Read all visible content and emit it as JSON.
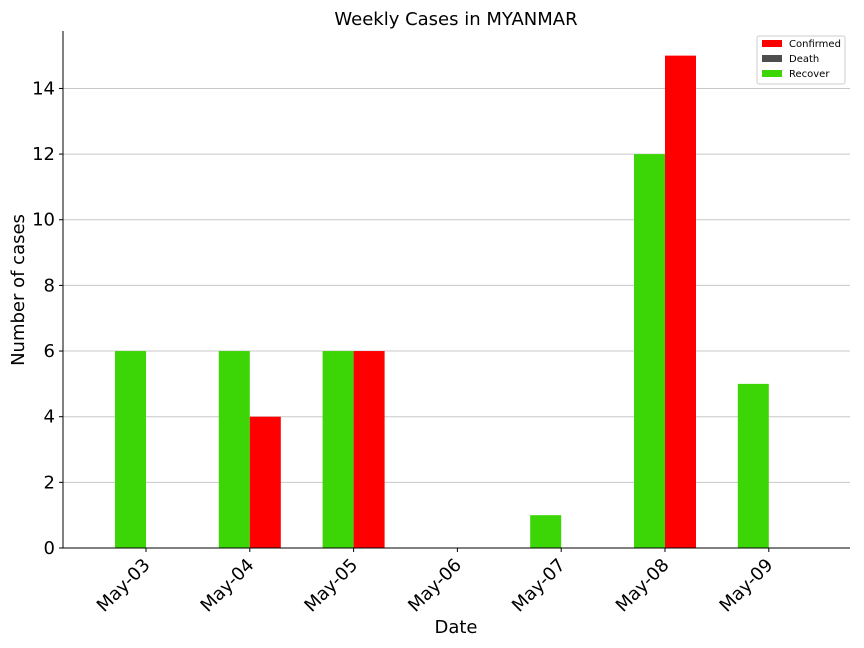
{
  "chart_data": {
    "type": "bar",
    "title": "Weekly Cases in MYANMAR",
    "xlabel": "Date",
    "ylabel": "Number of cases",
    "categories": [
      "May-03",
      "May-04",
      "May-05",
      "May-06",
      "May-07",
      "May-08",
      "May-09"
    ],
    "series": [
      {
        "name": "Recover",
        "color": "#3cd606",
        "values": [
          6,
          6,
          6,
          0,
          1,
          12,
          5
        ]
      },
      {
        "name": "Confirmed",
        "color": "#ff0000",
        "values": [
          0,
          4,
          6,
          0,
          0,
          15,
          0
        ]
      },
      {
        "name": "Death",
        "color": "#4d4d4d",
        "values": [
          0,
          0,
          0,
          0,
          0,
          0,
          0
        ]
      }
    ],
    "legend": {
      "placement": "top-right",
      "order": [
        "Confirmed",
        "Death",
        "Recover"
      ]
    },
    "ylim": [
      0,
      15.75
    ],
    "yticks": [
      0,
      2,
      4,
      6,
      8,
      10,
      12,
      14
    ],
    "grid": {
      "y": true,
      "x": false
    }
  }
}
